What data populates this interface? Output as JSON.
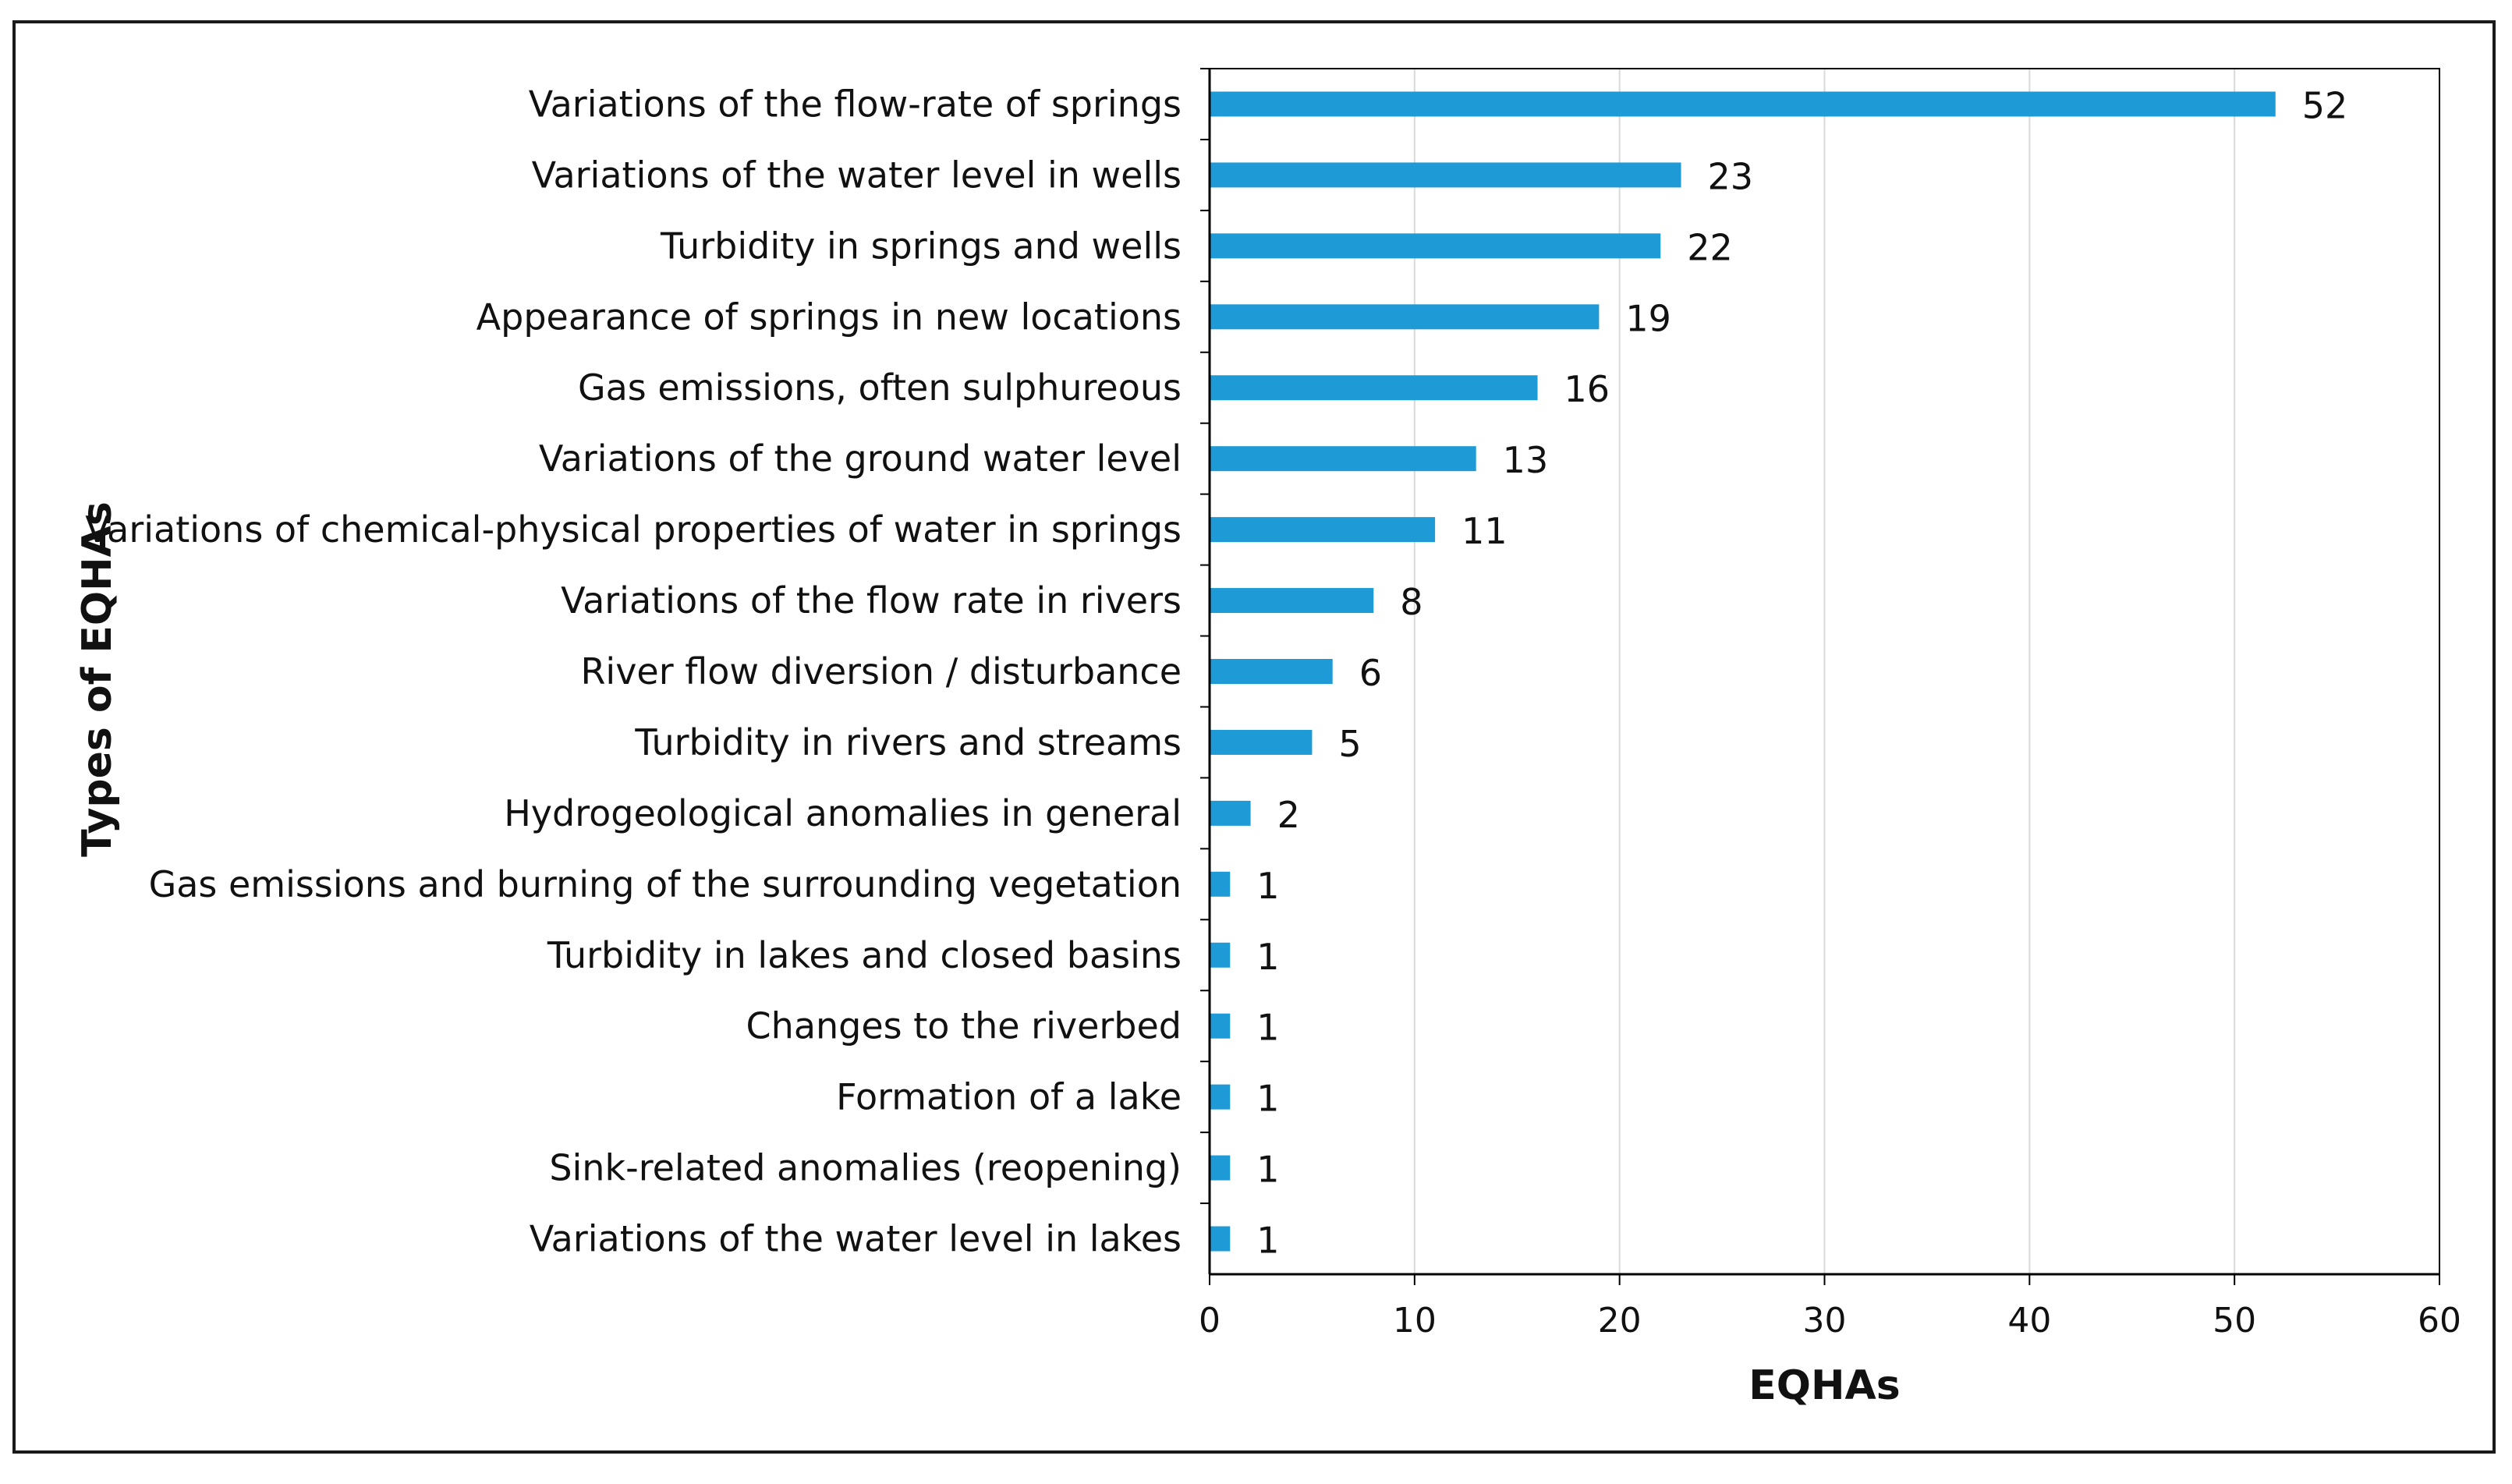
{
  "chart_data": {
    "type": "bar",
    "orientation": "horizontal",
    "categories": [
      "Variations of the flow-rate of springs",
      "Variations of the water level in wells",
      "Turbidity in springs and wells",
      "Appearance of springs in new locations",
      "Gas emissions, often sulphureous",
      "Variations of the ground water level",
      "Variations of chemical-physical properties of water in springs",
      "Variations of the flow rate in rivers",
      "River flow diversion / disturbance",
      "Turbidity in rivers and streams",
      "Hydrogeological anomalies in general",
      "Gas emissions and burning of the surrounding vegetation",
      "Turbidity in lakes and closed basins",
      "Changes to the riverbed",
      "Formation of a lake",
      "Sink-related anomalies (reopening)",
      "Variations of the water level in lakes"
    ],
    "values": [
      52,
      23,
      22,
      19,
      16,
      13,
      11,
      8,
      6,
      5,
      2,
      1,
      1,
      1,
      1,
      1,
      1
    ],
    "data_labels": [
      "52",
      "23",
      "22",
      "19",
      "16",
      "13",
      "11",
      "8",
      "6",
      "5",
      "2",
      "1",
      "1",
      "1",
      "1",
      "1",
      "1"
    ],
    "xlabel": "EQHAs",
    "ylabel": "Types of EQHAs",
    "xlim": [
      0,
      60
    ],
    "xticks": [
      0,
      10,
      20,
      30,
      40,
      50,
      60
    ],
    "xtick_labels": [
      "0",
      "10",
      "20",
      "30",
      "40",
      "50",
      "60"
    ],
    "grid": "vertical",
    "legend": "none",
    "bar_color": "#1E9AD6",
    "grid_color": "#d9d9d9",
    "axis_color": "#000000"
  }
}
